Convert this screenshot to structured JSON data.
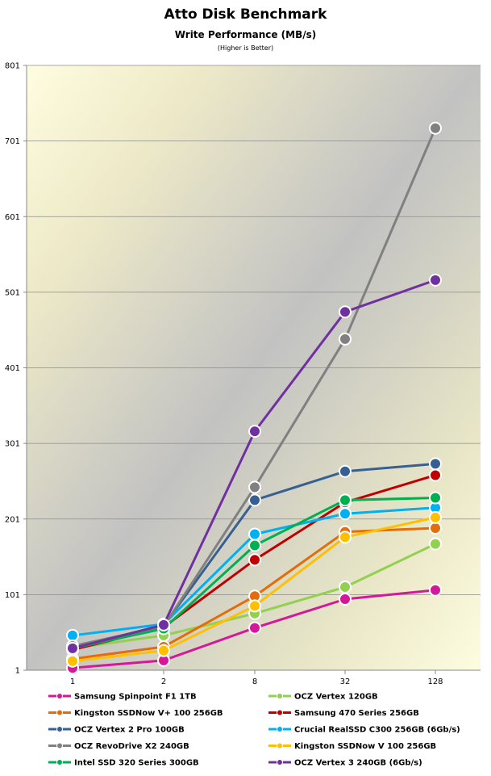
{
  "chart_data": {
    "type": "line",
    "title": "Atto Disk Benchmark",
    "subtitle": "Write Performance (MB/s)",
    "note": "(Higher is Better)",
    "x": [
      "1",
      "2",
      "8",
      "32",
      "128"
    ],
    "yticks": [
      1,
      101,
      201,
      301,
      401,
      501,
      601,
      701,
      801
    ],
    "ylim": [
      1,
      801
    ],
    "grid": "horizontal",
    "legend": "bottom",
    "series": [
      {
        "name": "Samsung Spinpoint F1 1TB",
        "color": "#d4189a",
        "values": [
          4,
          14,
          57,
          95,
          107
        ]
      },
      {
        "name": "OCZ Vertex 120GB",
        "color": "#92d050",
        "values": [
          30,
          47,
          76,
          111,
          168
        ]
      },
      {
        "name": "Kingston SSDNow V+ 100 256GB",
        "color": "#e46c0a",
        "values": [
          16,
          32,
          99,
          184,
          189
        ]
      },
      {
        "name": "Samsung 470 Series 256GB",
        "color": "#c00000",
        "values": [
          28,
          58,
          147,
          223,
          259
        ]
      },
      {
        "name": "OCZ Vertex 2 Pro 100GB",
        "color": "#366092",
        "values": [
          30,
          60,
          226,
          264,
          274
        ]
      },
      {
        "name": "Crucial RealSSD C300 256GB (6Gb/s)",
        "color": "#00b0f0",
        "values": [
          47,
          62,
          181,
          208,
          216
        ]
      },
      {
        "name": "OCZ RevoDrive X2 240GB",
        "color": "#808080",
        "values": [
          33,
          59,
          243,
          439,
          718
        ]
      },
      {
        "name": "Kingston SSDNow V 100 256GB",
        "color": "#ffc000",
        "values": [
          13,
          27,
          86,
          177,
          203
        ]
      },
      {
        "name": "Intel SSD 320 Series 300GB",
        "color": "#00b050",
        "values": [
          30,
          56,
          166,
          226,
          229
        ]
      },
      {
        "name": "OCZ Vertex 3 240GB (6Gb/s)",
        "color": "#7030a0",
        "values": [
          30,
          61,
          317,
          475,
          517
        ]
      }
    ]
  }
}
